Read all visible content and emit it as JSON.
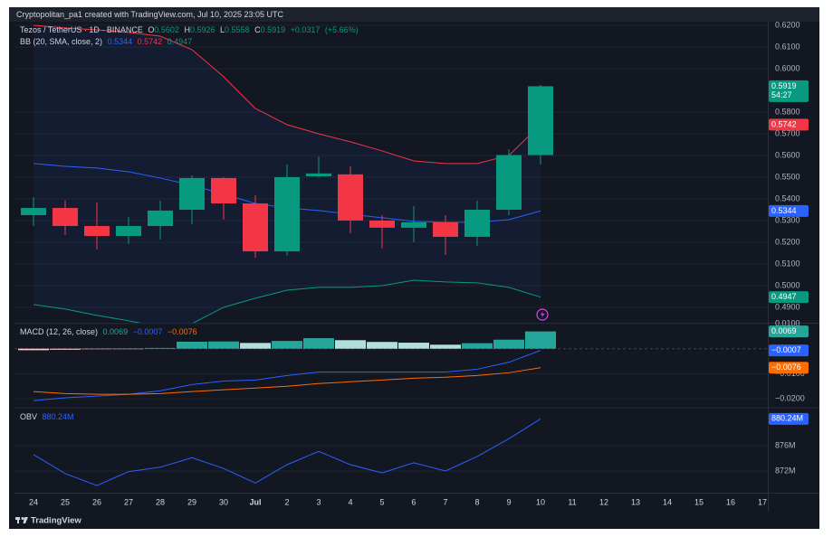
{
  "header": {
    "text": "Cryptopolitan_pa1 created with TradingView.com, Jul 10, 2025 23:05 UTC"
  },
  "footer": {
    "logo": "TradingView"
  },
  "x_axis": {
    "categories": [
      "24",
      "25",
      "26",
      "27",
      "28",
      "29",
      "30",
      "Jul",
      "2",
      "3",
      "4",
      "5",
      "6",
      "7",
      "8",
      "9",
      "10"
    ],
    "future": [
      "11",
      "12",
      "13",
      "14",
      "15",
      "16",
      "17"
    ]
  },
  "chart_data": [
    {
      "type": "candlestick",
      "title": "Tezos / TetherUS · 1D · BINANCE",
      "ohlc_legend": [
        {
          "label": "O",
          "value": 0.5602
        },
        {
          "label": "H",
          "value": 0.5926
        },
        {
          "label": "L",
          "value": 0.5558
        },
        {
          "label": "C",
          "value": 0.5919
        }
      ],
      "change": {
        "value": 0.0317,
        "label": "+0.0317"
      },
      "change_pct": {
        "value": 5.66,
        "label": "(+5.66%)"
      },
      "countdown": "54:27",
      "up_color": "#089981",
      "down_color": "#f23645",
      "open": [
        0.5325,
        0.5358,
        0.5275,
        0.5229,
        0.5275,
        0.535,
        0.5496,
        0.5379,
        0.5158,
        0.5504,
        0.5513,
        0.53,
        0.5267,
        0.5292,
        0.5225,
        0.535,
        0.5602
      ],
      "high": [
        0.5408,
        0.5392,
        0.5383,
        0.5317,
        0.5392,
        0.5508,
        0.55,
        0.5417,
        0.5558,
        0.5596,
        0.555,
        0.5325,
        0.5367,
        0.5325,
        0.5392,
        0.5629,
        0.5926
      ],
      "low": [
        0.5275,
        0.5233,
        0.5167,
        0.5192,
        0.5213,
        0.5283,
        0.5304,
        0.5129,
        0.5138,
        0.55,
        0.5242,
        0.5171,
        0.52,
        0.5142,
        0.5183,
        0.5325,
        0.5558
      ],
      "close": [
        0.5358,
        0.5275,
        0.5229,
        0.5275,
        0.5346,
        0.5496,
        0.5379,
        0.5158,
        0.55,
        0.5517,
        0.53,
        0.5267,
        0.5292,
        0.5225,
        0.535,
        0.5602,
        0.5919
      ],
      "indicator": "BB (20, SMA, close, 2)",
      "band_fill": "rgba(41,98,255,0.07)",
      "series": [
        {
          "color": "#2962ff",
          "values": [
            0.5563,
            0.555,
            0.5542,
            0.5525,
            0.5496,
            0.5463,
            0.5421,
            0.5379,
            0.5358,
            0.5346,
            0.5329,
            0.5313,
            0.5296,
            0.5292,
            0.5292,
            0.5304,
            0.5344
          ]
        },
        {
          "color": "#f23645",
          "values": [
            0.62,
            0.6188,
            0.6179,
            0.6167,
            0.615,
            0.6088,
            0.5963,
            0.5817,
            0.5742,
            0.57,
            0.5663,
            0.5621,
            0.5575,
            0.5563,
            0.5563,
            0.56,
            0.5742
          ]
        },
        {
          "color": "#089981",
          "values": [
            0.4913,
            0.4892,
            0.4863,
            0.4838,
            0.481,
            0.4825,
            0.49,
            0.4942,
            0.4979,
            0.4992,
            0.4992,
            0.5,
            0.5025,
            0.5017,
            0.5013,
            0.4992,
            0.4947
          ]
        }
      ],
      "ylim": [
        0.4829,
        0.6225
      ],
      "yticks": [
        {
          "value": 0.62,
          "label": "0.6200"
        },
        {
          "value": 0.61,
          "label": "0.6100"
        },
        {
          "value": 0.6,
          "label": "0.6000"
        },
        {
          "value": 0.58,
          "label": "0.5800"
        },
        {
          "value": 0.57,
          "label": "0.5700"
        },
        {
          "value": 0.56,
          "label": "0.5600"
        },
        {
          "value": 0.55,
          "label": "0.5500"
        },
        {
          "value": 0.54,
          "label": "0.5400"
        },
        {
          "value": 0.53,
          "label": "0.5300"
        },
        {
          "value": 0.52,
          "label": "0.5200"
        },
        {
          "value": 0.51,
          "label": "0.5100"
        },
        {
          "value": 0.5,
          "label": "0.5000"
        },
        {
          "value": 0.49,
          "label": "0.4900"
        }
      ],
      "grid": true
    },
    {
      "type": "macd",
      "title": "MACD (12, 26, close)",
      "histogram": {
        "values": [
          -0.0006,
          -0.0004,
          -0.0002,
          -0.0001,
          0.0003,
          0.0028,
          0.0029,
          0.0023,
          0.0031,
          0.0042,
          0.0034,
          0.0027,
          0.0024,
          0.0016,
          0.0022,
          0.0036,
          0.0069
        ],
        "colors": {
          "pos_up": "#26a69a",
          "pos_down": "#b2dfdb",
          "neg_up": "#ffcdd2",
          "neg_down": "#ff5252"
        }
      },
      "series": [
        {
          "color": "#2962ff",
          "values": [
            -0.0207,
            -0.0196,
            -0.0189,
            -0.0182,
            -0.0168,
            -0.0143,
            -0.0129,
            -0.0125,
            -0.0107,
            -0.0093,
            -0.0093,
            -0.0093,
            -0.0093,
            -0.0093,
            -0.0082,
            -0.0054,
            -0.0007
          ],
          "last_label": "−0.0007"
        },
        {
          "color": "#ff6d00",
          "values": [
            -0.0171,
            -0.0179,
            -0.0182,
            -0.0182,
            -0.0179,
            -0.0171,
            -0.0164,
            -0.0157,
            -0.015,
            -0.0139,
            -0.0132,
            -0.0125,
            -0.0118,
            -0.0114,
            -0.0107,
            -0.0096,
            -0.0076
          ],
          "last_label": "−0.0076"
        }
      ],
      "zero_line": 0,
      "ylim": [
        -0.0232,
        0.01
      ],
      "yticks": [
        {
          "value": 0.01,
          "label": "0.0100"
        },
        {
          "value": -0.01,
          "label": "−0.0100"
        },
        {
          "value": -0.02,
          "label": "−0.0200"
        }
      ],
      "grid": true
    },
    {
      "type": "line",
      "title": "OBV",
      "series": [
        {
          "color": "#2962ff",
          "values": [
            874.6,
            871.6,
            869.7,
            871.9,
            872.6,
            874.1,
            872.4,
            870.1,
            873,
            875.1,
            873,
            871.7,
            873.3,
            872,
            874.3,
            877.1,
            880.24
          ],
          "last_label": "880.24M"
        }
      ],
      "ylim": [
        868.57,
        881.86
      ],
      "yticks": [
        {
          "value": 876,
          "label": "876M"
        },
        {
          "value": 872,
          "label": "872M"
        }
      ],
      "grid": true
    }
  ]
}
